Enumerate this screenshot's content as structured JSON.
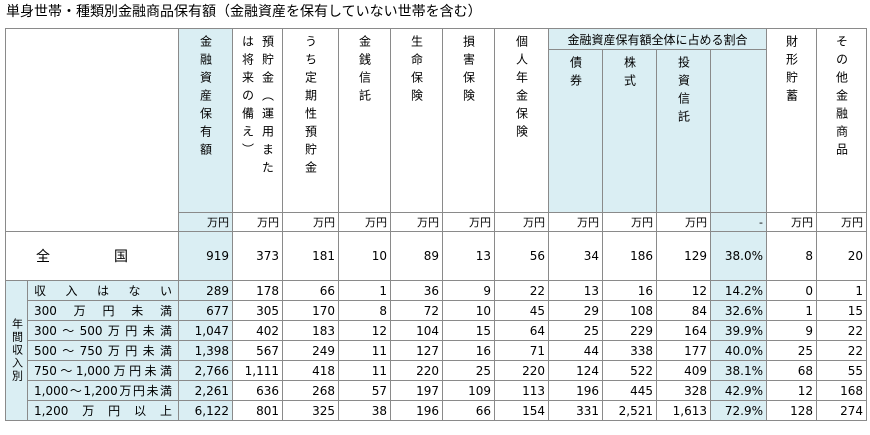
{
  "title": "単身世帯・種類別金融商品保有額（金融資産を保有していない世帯を含む）",
  "header": {
    "lead": [
      {
        "header": "金融資産保有額",
        "unit": "万円"
      },
      {
        "header": "預貯金（運用または将来の備え）",
        "unit": "万円"
      },
      {
        "header": "うち定期性預貯金",
        "unit": "万円"
      },
      {
        "header": "金銭信託",
        "unit": "万円"
      },
      {
        "header": "生命保険",
        "unit": "万円"
      },
      {
        "header": "損害保険",
        "unit": "万円"
      },
      {
        "header": "個人年金保険",
        "unit": "万円"
      }
    ],
    "group": {
      "label": "金融資産保有額全体に占める割合",
      "columns": [
        {
          "header": "債券",
          "unit": "万円"
        },
        {
          "header": "株式",
          "unit": "万円"
        },
        {
          "header": "投資信託",
          "unit": "万円"
        },
        {
          "unit": "-"
        }
      ]
    },
    "tail": [
      {
        "header": "財形貯蓄",
        "unit": "万円"
      },
      {
        "header": "その他金融商品",
        "unit": "万円"
      }
    ]
  },
  "national": {
    "label": "全国",
    "cells": [
      "919",
      "373",
      "181",
      "10",
      "89",
      "13",
      "56",
      "34",
      "186",
      "129",
      "38.0%",
      "8",
      "20"
    ]
  },
  "by_income": {
    "label": "年間収入別",
    "rows": [
      {
        "label": "収入はない",
        "cells": [
          "289",
          "178",
          "66",
          "1",
          "36",
          "9",
          "22",
          "13",
          "16",
          "12",
          "14.2%",
          "0",
          "1"
        ]
      },
      {
        "label": "300万円未満",
        "cells": [
          "677",
          "305",
          "170",
          "8",
          "72",
          "10",
          "45",
          "29",
          "108",
          "84",
          "32.6%",
          "1",
          "15"
        ]
      },
      {
        "label": "300～500万円未満",
        "cells": [
          "1,047",
          "402",
          "183",
          "12",
          "104",
          "15",
          "64",
          "25",
          "229",
          "164",
          "39.9%",
          "9",
          "22"
        ]
      },
      {
        "label": "500～750万円未満",
        "cells": [
          "1,398",
          "567",
          "249",
          "11",
          "127",
          "16",
          "71",
          "44",
          "338",
          "177",
          "40.0%",
          "25",
          "22"
        ]
      },
      {
        "label": "750～1,000万円未満",
        "cells": [
          "2,766",
          "1,111",
          "418",
          "11",
          "220",
          "25",
          "220",
          "124",
          "522",
          "409",
          "38.1%",
          "68",
          "55"
        ]
      },
      {
        "label": "1,000～1,200万円未満",
        "cells": [
          "2,261",
          "636",
          "268",
          "57",
          "197",
          "109",
          "113",
          "196",
          "445",
          "328",
          "42.9%",
          "12",
          "168"
        ]
      },
      {
        "label": "1,200万円以上",
        "cells": [
          "6,122",
          "801",
          "325",
          "38",
          "196",
          "66",
          "154",
          "331",
          "2,521",
          "1,613",
          "72.9%",
          "128",
          "274"
        ]
      }
    ]
  }
}
